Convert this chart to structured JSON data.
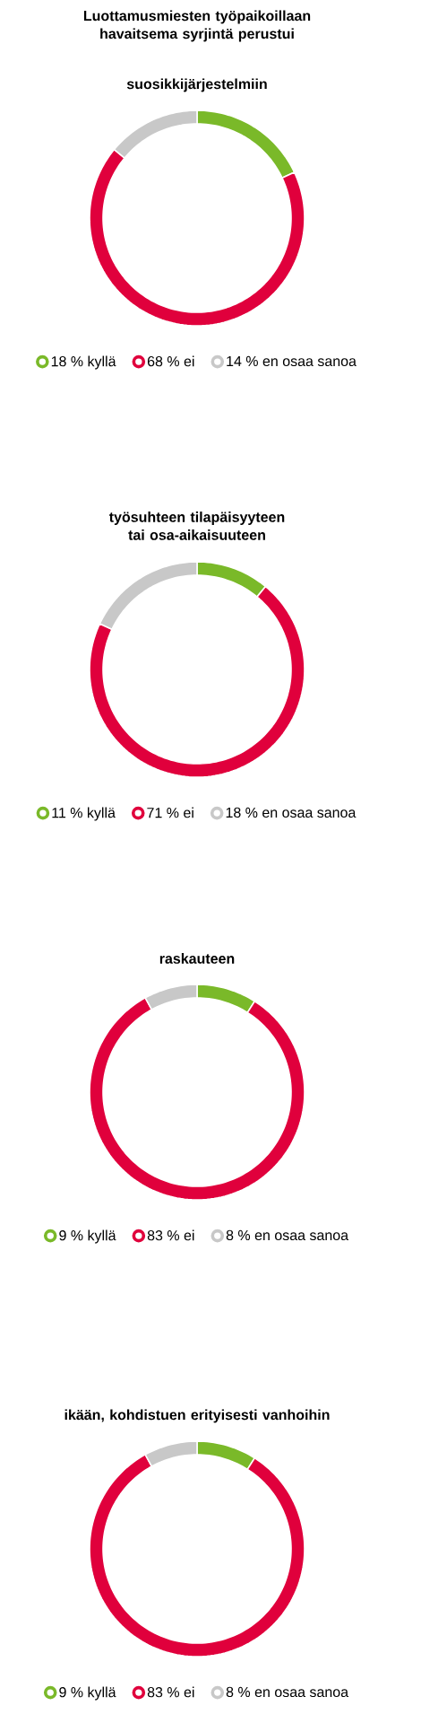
{
  "chart_data": [
    {
      "type": "donut",
      "title": "Luottamusmiesten työpaikoillaan havaitsema syrjintä perustui",
      "subtitle": "suosikkijärjestelmiin",
      "categories": [
        "18 % kyllä",
        "68 % ei",
        "14 % en osaa sanoa"
      ],
      "values": [
        18,
        68,
        14
      ],
      "colors": [
        "#7ab929",
        "#e0003c",
        "#c8c8c8"
      ],
      "legend": "bottom"
    },
    {
      "type": "donut",
      "title": "työsuhteen tilapäisyyteen tai osa-aikaisuuteen",
      "categories": [
        "11 % kyllä",
        "71 % ei",
        "18 % en osaa sanoa"
      ],
      "values": [
        11,
        71,
        18
      ],
      "colors": [
        "#7ab929",
        "#e0003c",
        "#c8c8c8"
      ],
      "legend": "bottom"
    },
    {
      "type": "donut",
      "title": "raskauteen",
      "categories": [
        "9 % kyllä",
        "83 % ei",
        "8 % en osaa sanoa"
      ],
      "values": [
        9,
        83,
        8
      ],
      "colors": [
        "#7ab929",
        "#e0003c",
        "#c8c8c8"
      ],
      "legend": "bottom"
    },
    {
      "type": "donut",
      "title": "ikään, kohdistuen erityisesti vanhoihin",
      "categories": [
        "9 % kyllä",
        "83 % ei",
        "8 % en osaa sanoa"
      ],
      "values": [
        9,
        83,
        8
      ],
      "colors": [
        "#7ab929",
        "#e0003c",
        "#c8c8c8"
      ],
      "legend": "bottom"
    }
  ]
}
